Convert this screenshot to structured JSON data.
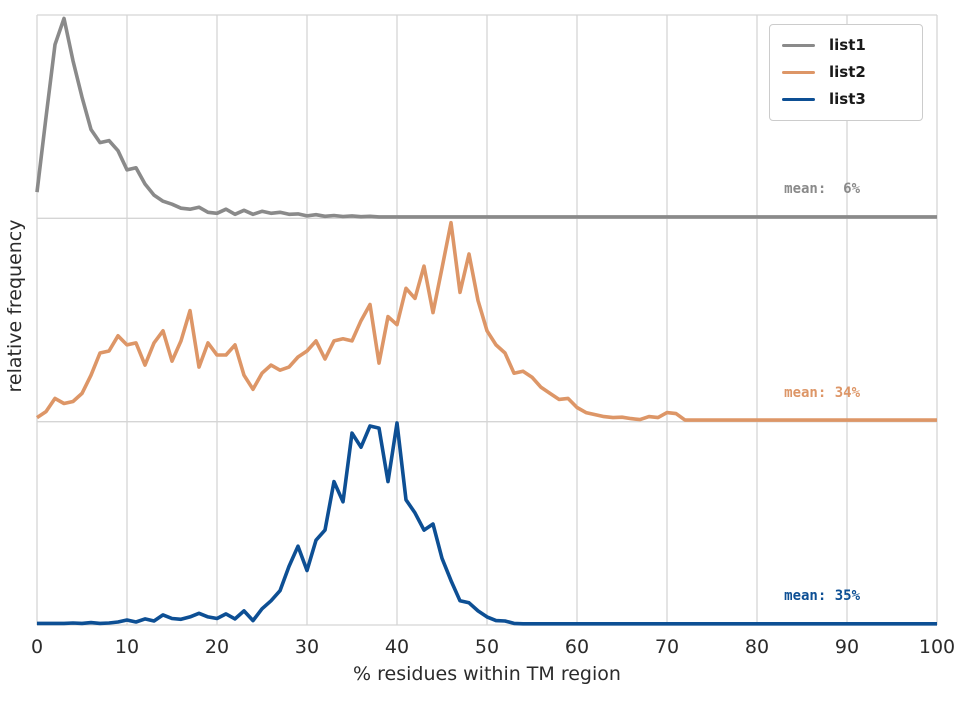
{
  "chart_data": {
    "type": "line",
    "title": "",
    "xlabel": "% residues within TM region",
    "ylabel": "relative frequency",
    "xlim": [
      0,
      100
    ],
    "x_ticks": [
      "0",
      "10",
      "20",
      "30",
      "40",
      "50",
      "60",
      "70",
      "80",
      "90",
      "100"
    ],
    "grid": true,
    "layout": "three stacked panels sharing one x-axis, each curve a normalized frequency distribution (baseline = 0 of its panel)",
    "legend_position": "upper right",
    "x_step": 1,
    "series": [
      {
        "name": "list1",
        "color": "#8a8a8a",
        "mean_label": "mean:  6%",
        "mean_value": 6,
        "panel": 0,
        "values": [
          0.13,
          0.5,
          0.86,
          0.99,
          0.78,
          0.6,
          0.44,
          0.375,
          0.385,
          0.335,
          0.24,
          0.25,
          0.17,
          0.115,
          0.085,
          0.07,
          0.05,
          0.045,
          0.055,
          0.03,
          0.025,
          0.045,
          0.02,
          0.04,
          0.02,
          0.035,
          0.025,
          0.03,
          0.02,
          0.022,
          0.012,
          0.018,
          0.01,
          0.014,
          0.009,
          0.012,
          0.008,
          0.01,
          0.007,
          0.007,
          0.007,
          0.007,
          0.007,
          0.007,
          0.007,
          0.007,
          0.007,
          0.007,
          0.007,
          0.007,
          0.007,
          0.007,
          0.007,
          0.007,
          0.007,
          0.007,
          0.007,
          0.007,
          0.007,
          0.007,
          0.007,
          0.007,
          0.007,
          0.007,
          0.007,
          0.007,
          0.007,
          0.007,
          0.007,
          0.007,
          0.007,
          0.007,
          0.007,
          0.007,
          0.007,
          0.007,
          0.007,
          0.007,
          0.007,
          0.007,
          0.007,
          0.007,
          0.007,
          0.007,
          0.007,
          0.007,
          0.007,
          0.007,
          0.007,
          0.007,
          0.007,
          0.007,
          0.007,
          0.007,
          0.007,
          0.007,
          0.007,
          0.007,
          0.007,
          0.007,
          0.007
        ]
      },
      {
        "name": "list2",
        "color": "#dd9667",
        "mean_label": "mean: 34%",
        "mean_value": 34,
        "panel": 1,
        "values": [
          0.02,
          0.05,
          0.115,
          0.09,
          0.1,
          0.14,
          0.23,
          0.34,
          0.35,
          0.425,
          0.38,
          0.39,
          0.28,
          0.39,
          0.45,
          0.3,
          0.4,
          0.55,
          0.27,
          0.39,
          0.33,
          0.33,
          0.38,
          0.23,
          0.16,
          0.24,
          0.28,
          0.255,
          0.27,
          0.32,
          0.35,
          0.4,
          0.31,
          0.4,
          0.41,
          0.4,
          0.5,
          0.58,
          0.29,
          0.52,
          0.48,
          0.66,
          0.61,
          0.77,
          0.54,
          0.76,
          0.985,
          0.64,
          0.83,
          0.6,
          0.45,
          0.38,
          0.34,
          0.24,
          0.25,
          0.22,
          0.17,
          0.14,
          0.11,
          0.115,
          0.07,
          0.045,
          0.035,
          0.025,
          0.02,
          0.022,
          0.015,
          0.01,
          0.025,
          0.02,
          0.045,
          0.04,
          0.008,
          0.008,
          0.008,
          0.008,
          0.008,
          0.008,
          0.008,
          0.008,
          0.008,
          0.008,
          0.008,
          0.008,
          0.008,
          0.008,
          0.008,
          0.008,
          0.008,
          0.008,
          0.008,
          0.008,
          0.008,
          0.008,
          0.008,
          0.008,
          0.008,
          0.008,
          0.008,
          0.008,
          0.008
        ]
      },
      {
        "name": "list3",
        "color": "#0d4f94",
        "mean_label": "mean: 35%",
        "mean_value": 35,
        "panel": 2,
        "values": [
          0.008,
          0.008,
          0.008,
          0.008,
          0.01,
          0.008,
          0.012,
          0.008,
          0.01,
          0.015,
          0.025,
          0.015,
          0.03,
          0.02,
          0.05,
          0.032,
          0.028,
          0.04,
          0.058,
          0.04,
          0.032,
          0.055,
          0.03,
          0.07,
          0.022,
          0.08,
          0.12,
          0.17,
          0.29,
          0.39,
          0.27,
          0.42,
          0.47,
          0.71,
          0.61,
          0.95,
          0.88,
          0.985,
          0.975,
          0.71,
          1.0,
          0.62,
          0.555,
          0.47,
          0.5,
          0.33,
          0.22,
          0.12,
          0.11,
          0.07,
          0.04,
          0.022,
          0.02,
          0.008,
          0.006,
          0.006,
          0.006,
          0.006,
          0.006,
          0.006,
          0.006,
          0.006,
          0.006,
          0.006,
          0.006,
          0.006,
          0.006,
          0.006,
          0.006,
          0.006,
          0.006,
          0.006,
          0.006,
          0.006,
          0.006,
          0.006,
          0.006,
          0.006,
          0.006,
          0.006,
          0.006,
          0.006,
          0.006,
          0.006,
          0.006,
          0.006,
          0.006,
          0.006,
          0.006,
          0.006,
          0.006,
          0.006,
          0.006,
          0.006,
          0.006,
          0.006,
          0.006,
          0.006,
          0.006,
          0.006,
          0.006
        ]
      }
    ]
  },
  "legend": {
    "items": [
      {
        "label": "list1",
        "color": "#8a8a8a"
      },
      {
        "label": "list2",
        "color": "#dd9667"
      },
      {
        "label": "list3",
        "color": "#0d4f94"
      }
    ]
  },
  "style_colors": {
    "grid": "#d5d5d5",
    "text": "#2b2b2b",
    "background": "#ffffff"
  }
}
